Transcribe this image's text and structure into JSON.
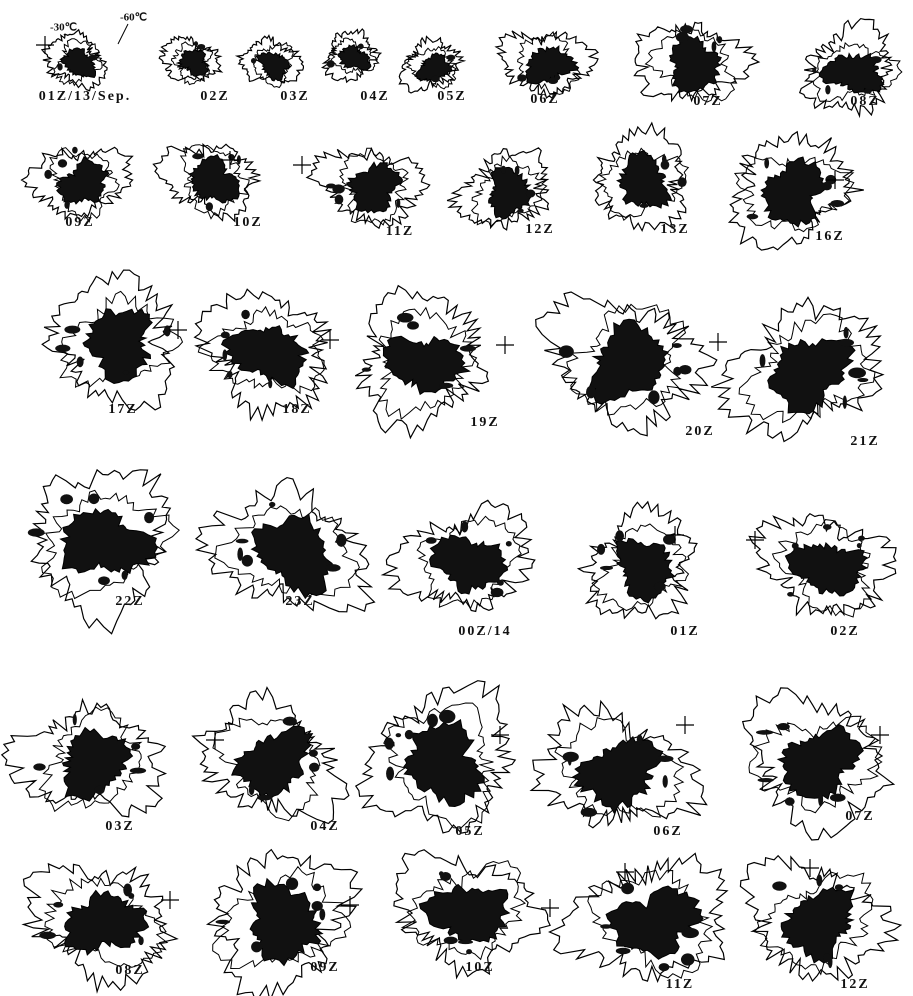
{
  "legend": {
    "outer": "-30℃",
    "inner": "-60℃"
  },
  "panels": [
    "01Z/13/Sep.",
    "02Z",
    "03Z",
    "04Z",
    "05Z",
    "06Z",
    "07Z",
    "08Z",
    "09Z",
    "10Z",
    "11Z",
    "12Z",
    "13Z",
    "16Z",
    "17Z",
    "18Z",
    "19Z",
    "20Z",
    "21Z",
    "22Z",
    "23Z",
    "00Z/14",
    "01Z",
    "02Z",
    "03Z",
    "04Z",
    "05Z",
    "06Z",
    "07Z",
    "08Z",
    "09Z",
    "10Z",
    "11Z",
    "12Z"
  ]
}
